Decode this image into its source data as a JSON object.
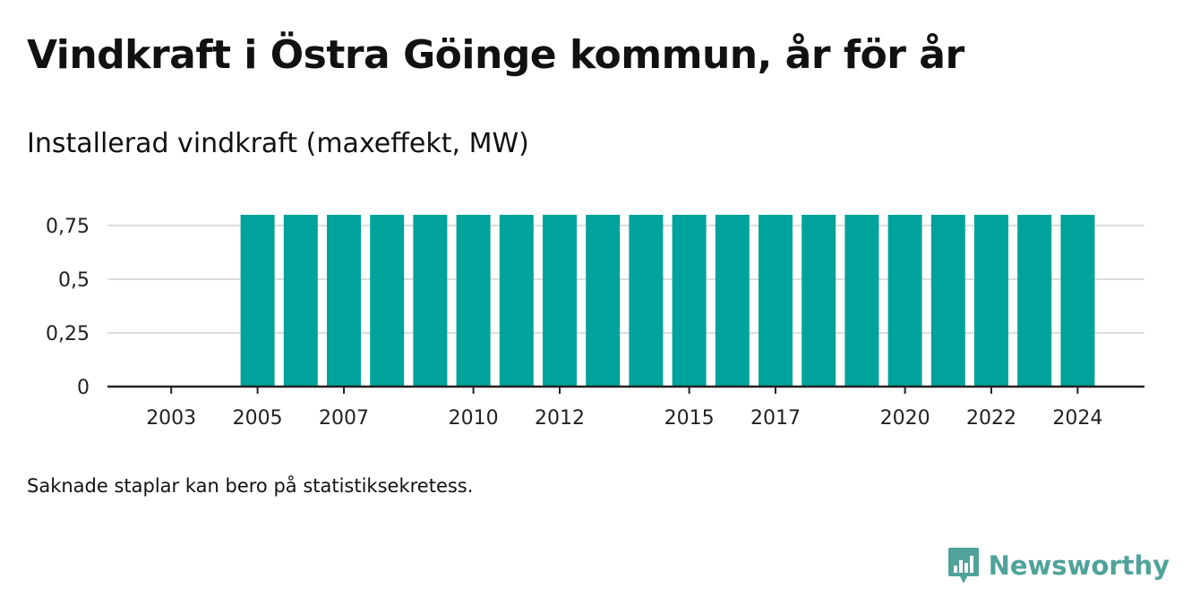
{
  "title": "Vindkraft i Östra Göinge kommun, år för år",
  "subtitle": "Installerad vindkraft (maxeffekt, MW)",
  "footnote": "Saknade staplar kan bero på statistiksekretess.",
  "brand": {
    "name": "Newsworthy",
    "icon": "newsworthy-logo-icon",
    "color": "#4fa39a"
  },
  "colors": {
    "bar": "#00a39b",
    "grid": "#dddddd",
    "axis": "#222222"
  },
  "chart_data": {
    "type": "bar",
    "x": [
      2002,
      2003,
      2004,
      2005,
      2006,
      2007,
      2008,
      2009,
      2010,
      2011,
      2012,
      2013,
      2014,
      2015,
      2016,
      2017,
      2018,
      2019,
      2020,
      2021,
      2022,
      2023,
      2024
    ],
    "values": [
      null,
      null,
      null,
      0.8,
      0.8,
      0.8,
      0.8,
      0.8,
      0.8,
      0.8,
      0.8,
      0.8,
      0.8,
      0.8,
      0.8,
      0.8,
      0.8,
      0.8,
      0.8,
      0.8,
      0.8,
      0.8,
      0.8
    ],
    "x_tick_labels": [
      "2003",
      "2005",
      "2007",
      "2010",
      "2012",
      "2015",
      "2017",
      "2020",
      "2022",
      "2024"
    ],
    "x_tick_values": [
      2003,
      2005,
      2007,
      2010,
      2012,
      2015,
      2017,
      2020,
      2022,
      2024
    ],
    "y_tick_labels": [
      "0",
      "0,25",
      "0,5",
      "0,75"
    ],
    "y_tick_values": [
      0,
      0.25,
      0.5,
      0.75
    ],
    "ylim": [
      0,
      0.8
    ],
    "grid": true,
    "legend": "none"
  }
}
